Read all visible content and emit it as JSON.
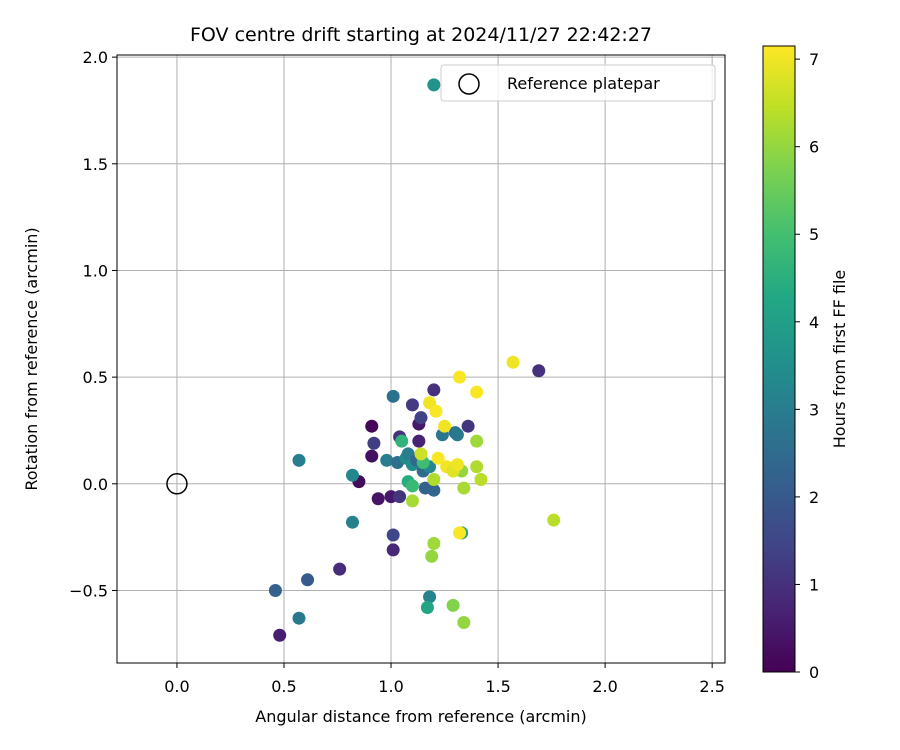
{
  "chart_data": {
    "type": "scatter",
    "title": "FOV centre drift starting at 2024/11/27 22:42:27",
    "xlabel": "Angular distance from reference (arcmin)",
    "ylabel": "Rotation from reference (arcmin)",
    "xlim": [
      -0.28,
      2.56
    ],
    "ylim": [
      -0.84,
      2.01
    ],
    "xticks": [
      0.0,
      0.5,
      1.0,
      1.5,
      2.0,
      2.5
    ],
    "xtick_labels": [
      "0.0",
      "0.5",
      "1.0",
      "1.5",
      "2.0",
      "2.5"
    ],
    "yticks": [
      -0.5,
      0.0,
      0.5,
      1.0,
      1.5,
      2.0
    ],
    "ytick_labels": [
      "−0.5",
      "0.0",
      "0.5",
      "1.0",
      "1.5",
      "2.0"
    ],
    "grid": true,
    "legend": {
      "placement": "top-right",
      "entries": [
        "Reference platepar"
      ]
    },
    "colorbar": {
      "label": "Hours from first FF file",
      "colormap": "viridis",
      "range": [
        0,
        7.15
      ],
      "ticks": [
        0,
        1,
        2,
        3,
        4,
        5,
        6,
        7
      ],
      "tick_labels": [
        "0",
        "1",
        "2",
        "3",
        "4",
        "5",
        "6",
        "7"
      ]
    },
    "reference_point": {
      "x": 0.0,
      "y": 0.0
    },
    "series": [
      {
        "points": [
          {
            "x": 0.48,
            "y": -0.71,
            "h": 0.6
          },
          {
            "x": 0.76,
            "y": -0.4,
            "h": 0.9
          },
          {
            "x": 0.85,
            "y": 0.01,
            "h": 0.2
          },
          {
            "x": 0.91,
            "y": 0.27,
            "h": 0.1
          },
          {
            "x": 0.91,
            "y": 0.13,
            "h": 0.3
          },
          {
            "x": 0.92,
            "y": 0.19,
            "h": 1.3
          },
          {
            "x": 0.94,
            "y": -0.07,
            "h": 0.4
          },
          {
            "x": 1.0,
            "y": -0.06,
            "h": 0.5
          },
          {
            "x": 1.01,
            "y": -0.31,
            "h": 0.8
          },
          {
            "x": 1.01,
            "y": -0.24,
            "h": 1.5
          },
          {
            "x": 1.04,
            "y": -0.06,
            "h": 1.1
          },
          {
            "x": 1.04,
            "y": 0.22,
            "h": 1.0
          },
          {
            "x": 1.1,
            "y": 0.37,
            "h": 1.2
          },
          {
            "x": 1.13,
            "y": 0.28,
            "h": 0.5
          },
          {
            "x": 1.13,
            "y": 0.2,
            "h": 0.7
          },
          {
            "x": 1.14,
            "y": 0.31,
            "h": 1.4
          },
          {
            "x": 1.2,
            "y": 0.44,
            "h": 1.0
          },
          {
            "x": 1.36,
            "y": 0.27,
            "h": 1.1
          },
          {
            "x": 1.69,
            "y": 0.53,
            "h": 1.0
          },
          {
            "x": 0.46,
            "y": -0.5,
            "h": 2.2
          },
          {
            "x": 0.61,
            "y": -0.45,
            "h": 2.0
          },
          {
            "x": 0.57,
            "y": -0.63,
            "h": 2.9
          },
          {
            "x": 0.57,
            "y": 0.11,
            "h": 3.0
          },
          {
            "x": 0.82,
            "y": -0.18,
            "h": 3.1
          },
          {
            "x": 0.82,
            "y": 0.04,
            "h": 3.3
          },
          {
            "x": 0.98,
            "y": 0.11,
            "h": 3.0
          },
          {
            "x": 1.01,
            "y": 0.41,
            "h": 2.7
          },
          {
            "x": 1.03,
            "y": 0.1,
            "h": 2.6
          },
          {
            "x": 1.07,
            "y": 0.12,
            "h": 3.4
          },
          {
            "x": 1.08,
            "y": 0.14,
            "h": 3.0
          },
          {
            "x": 1.1,
            "y": 0.09,
            "h": 3.5
          },
          {
            "x": 1.12,
            "y": 0.11,
            "h": 2.4
          },
          {
            "x": 1.15,
            "y": 0.06,
            "h": 2.5
          },
          {
            "x": 1.16,
            "y": -0.02,
            "h": 2.2
          },
          {
            "x": 1.18,
            "y": 0.08,
            "h": 3.3
          },
          {
            "x": 1.2,
            "y": -0.03,
            "h": 2.3
          },
          {
            "x": 1.24,
            "y": 0.23,
            "h": 2.8
          },
          {
            "x": 1.3,
            "y": 0.24,
            "h": 2.6
          },
          {
            "x": 1.31,
            "y": 0.23,
            "h": 2.9
          },
          {
            "x": 1.08,
            "y": 0.01,
            "h": 4.4
          },
          {
            "x": 1.05,
            "y": 0.2,
            "h": 4.6
          },
          {
            "x": 1.1,
            "y": -0.01,
            "h": 4.8
          },
          {
            "x": 1.15,
            "y": 0.1,
            "h": 4.9
          },
          {
            "x": 1.18,
            "y": -0.53,
            "h": 3.2
          },
          {
            "x": 1.17,
            "y": -0.58,
            "h": 4.2
          },
          {
            "x": 1.2,
            "y": 1.87,
            "h": 3.6
          },
          {
            "x": 1.33,
            "y": -0.23,
            "h": 4.2
          },
          {
            "x": 1.1,
            "y": -0.08,
            "h": 6.2
          },
          {
            "x": 1.14,
            "y": 0.14,
            "h": 6.6
          },
          {
            "x": 1.19,
            "y": -0.34,
            "h": 6.0
          },
          {
            "x": 1.2,
            "y": -0.28,
            "h": 6.1
          },
          {
            "x": 1.2,
            "y": 0.02,
            "h": 6.3
          },
          {
            "x": 1.29,
            "y": -0.57,
            "h": 5.8
          },
          {
            "x": 1.33,
            "y": 0.06,
            "h": 6.0
          },
          {
            "x": 1.34,
            "y": -0.02,
            "h": 6.2
          },
          {
            "x": 1.34,
            "y": -0.65,
            "h": 6.0
          },
          {
            "x": 1.4,
            "y": 0.2,
            "h": 6.1
          },
          {
            "x": 1.4,
            "y": 0.08,
            "h": 6.3
          },
          {
            "x": 1.42,
            "y": 0.02,
            "h": 6.4
          },
          {
            "x": 1.76,
            "y": -0.17,
            "h": 6.4
          },
          {
            "x": 1.18,
            "y": 0.38,
            "h": 7.0
          },
          {
            "x": 1.21,
            "y": 0.34,
            "h": 7.1
          },
          {
            "x": 1.22,
            "y": 0.12,
            "h": 7.1
          },
          {
            "x": 1.25,
            "y": 0.27,
            "h": 7.0
          },
          {
            "x": 1.26,
            "y": 0.08,
            "h": 7.0
          },
          {
            "x": 1.29,
            "y": 0.06,
            "h": 6.8
          },
          {
            "x": 1.31,
            "y": 0.09,
            "h": 7.0
          },
          {
            "x": 1.32,
            "y": 0.5,
            "h": 7.1
          },
          {
            "x": 1.32,
            "y": -0.23,
            "h": 7.1
          },
          {
            "x": 1.4,
            "y": 0.43,
            "h": 7.1
          },
          {
            "x": 1.57,
            "y": 0.57,
            "h": 7.0
          }
        ]
      }
    ]
  }
}
